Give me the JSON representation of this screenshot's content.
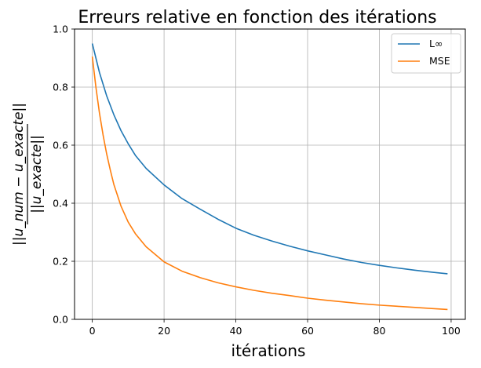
{
  "chart_data": {
    "type": "line",
    "title": "Erreurs relative en fonction des itérations",
    "xlabel": "itérations",
    "ylabel": {
      "numerator": "||u_num − u_exacte||",
      "denominator": "||u_exacte||"
    },
    "xlim": [
      -4.95,
      103.95
    ],
    "ylim": [
      0.0,
      1.0
    ],
    "xticks": [
      0,
      20,
      40,
      60,
      80,
      100
    ],
    "yticks": [
      0.0,
      0.2,
      0.4,
      0.6,
      0.8,
      1.0
    ],
    "xtick_labels": [
      "0",
      "20",
      "40",
      "60",
      "80",
      "100"
    ],
    "ytick_labels": [
      "0.0",
      "0.2",
      "0.4",
      "0.6",
      "0.8",
      "1.0"
    ],
    "grid": true,
    "legend_position": "top-right",
    "series": [
      {
        "name": "L∞",
        "color": "#1f77b4",
        "x": [
          0,
          2,
          4,
          6,
          8,
          10,
          12,
          15,
          20,
          25,
          30,
          35,
          40,
          45,
          50,
          55,
          60,
          65,
          70,
          75,
          80,
          85,
          90,
          95,
          99
        ],
        "y": [
          0.95,
          0.85,
          0.77,
          0.705,
          0.65,
          0.605,
          0.565,
          0.52,
          0.463,
          0.416,
          0.38,
          0.345,
          0.314,
          0.29,
          0.27,
          0.252,
          0.236,
          0.222,
          0.208,
          0.196,
          0.186,
          0.177,
          0.169,
          0.162,
          0.157
        ]
      },
      {
        "name": "MSE",
        "color": "#ff7f0e",
        "x": [
          0,
          1,
          2,
          3,
          4,
          5,
          6,
          8,
          10,
          12,
          15,
          20,
          25,
          30,
          35,
          40,
          45,
          50,
          55,
          60,
          65,
          70,
          75,
          80,
          85,
          90,
          95,
          99
        ],
        "y": [
          0.905,
          0.8,
          0.71,
          0.635,
          0.57,
          0.515,
          0.465,
          0.39,
          0.335,
          0.295,
          0.25,
          0.198,
          0.166,
          0.144,
          0.126,
          0.112,
          0.1,
          0.09,
          0.082,
          0.073,
          0.066,
          0.06,
          0.054,
          0.049,
          0.045,
          0.041,
          0.037,
          0.034
        ]
      }
    ]
  }
}
